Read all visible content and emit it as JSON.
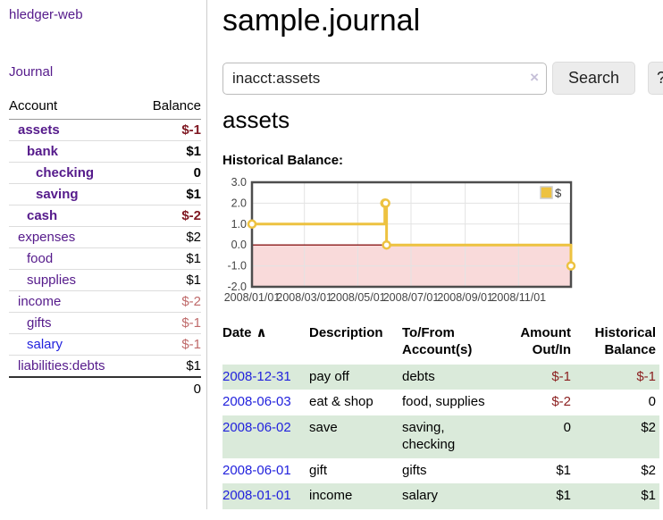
{
  "app_title": "hledger-web",
  "sidebar": {
    "journal_link": "Journal",
    "accounts": {
      "col_account": "Account",
      "col_balance": "Balance",
      "rows": [
        {
          "name": "assets",
          "balance": "$-1",
          "indent": 1,
          "bold": true,
          "negative": "strong"
        },
        {
          "name": "bank",
          "balance": "$1",
          "indent": 2,
          "bold": true,
          "negative": ""
        },
        {
          "name": "checking",
          "balance": "0",
          "indent": 3,
          "bold": true,
          "negative": ""
        },
        {
          "name": "saving",
          "balance": "$1",
          "indent": 3,
          "bold": true,
          "negative": ""
        },
        {
          "name": "cash",
          "balance": "$-2",
          "indent": 2,
          "bold": true,
          "negative": "strong"
        },
        {
          "name": "expenses",
          "balance": "$2",
          "indent": 1,
          "bold": false,
          "negative": ""
        },
        {
          "name": "food",
          "balance": "$1",
          "indent": 2,
          "bold": false,
          "negative": ""
        },
        {
          "name": "supplies",
          "balance": "$1",
          "indent": 2,
          "bold": false,
          "negative": ""
        },
        {
          "name": "income",
          "balance": "$-2",
          "indent": 1,
          "bold": false,
          "negative": "soft"
        },
        {
          "name": "gifts",
          "balance": "$-1",
          "indent": 2,
          "bold": false,
          "negative": "soft"
        },
        {
          "name": "salary",
          "balance": "$-1",
          "indent": 2,
          "bold": false,
          "negative": "soft",
          "link_blue": true
        },
        {
          "name": "liabilities:debts",
          "balance": "$1",
          "indent": 1,
          "bold": false,
          "negative": ""
        }
      ],
      "total": "0"
    }
  },
  "header": {
    "title": "sample.journal"
  },
  "search": {
    "value": "inacct:assets",
    "clear_icon": "×",
    "search_button": "Search",
    "help_button": "?"
  },
  "account_page": {
    "title": "assets",
    "chart_heading": "Historical Balance:"
  },
  "chart_data": {
    "type": "line",
    "step": true,
    "series": [
      {
        "name": "$",
        "color": "#edc240",
        "points": [
          [
            "2008-01-01",
            1
          ],
          [
            "2008-06-01",
            2
          ],
          [
            "2008-06-02",
            2
          ],
          [
            "2008-06-03",
            0
          ],
          [
            "2008-12-31",
            -1
          ]
        ]
      }
    ],
    "x_range": [
      "2008-01-01",
      "2008-12-31"
    ],
    "x_ticks": [
      "2008/01/01",
      "2008/03/01",
      "2008/05/01",
      "2008/07/01",
      "2008/09/01",
      "2008/11/01"
    ],
    "y_ticks": [
      "3.0",
      "2.0",
      "1.0",
      "0.0",
      "-1.0",
      "-2.0"
    ],
    "ylim": [
      -2,
      3
    ],
    "grid": true,
    "negative_region_color": "#f9dada",
    "zero_line_color": "#8b1a1a",
    "legend": {
      "label": "$",
      "position": "top-right"
    }
  },
  "register": {
    "sort_indicator": "∧",
    "headers": {
      "date": "Date",
      "description": "Description",
      "accounts": "To/From Account(s)",
      "amount": "Amount Out/In",
      "balance": "Historical Balance"
    },
    "rows": [
      {
        "date": "2008-12-31",
        "description": "pay off",
        "accounts": "debts",
        "amount": "$-1",
        "balance": "$-1",
        "amount_negative": true,
        "balance_negative": true
      },
      {
        "date": "2008-06-03",
        "description": "eat & shop",
        "accounts": "food, supplies",
        "amount": "$-2",
        "balance": "0",
        "amount_negative": true,
        "balance_negative": false
      },
      {
        "date": "2008-06-02",
        "description": "save",
        "accounts": "saving, checking",
        "amount": "0",
        "balance": "$2",
        "amount_negative": false,
        "balance_negative": false
      },
      {
        "date": "2008-06-01",
        "description": "gift",
        "accounts": "gifts",
        "amount": "$1",
        "balance": "$2",
        "amount_negative": false,
        "balance_negative": false
      },
      {
        "date": "2008-01-01",
        "description": "income",
        "accounts": "salary",
        "amount": "$1",
        "balance": "$1",
        "amount_negative": false,
        "balance_negative": false
      }
    ]
  }
}
